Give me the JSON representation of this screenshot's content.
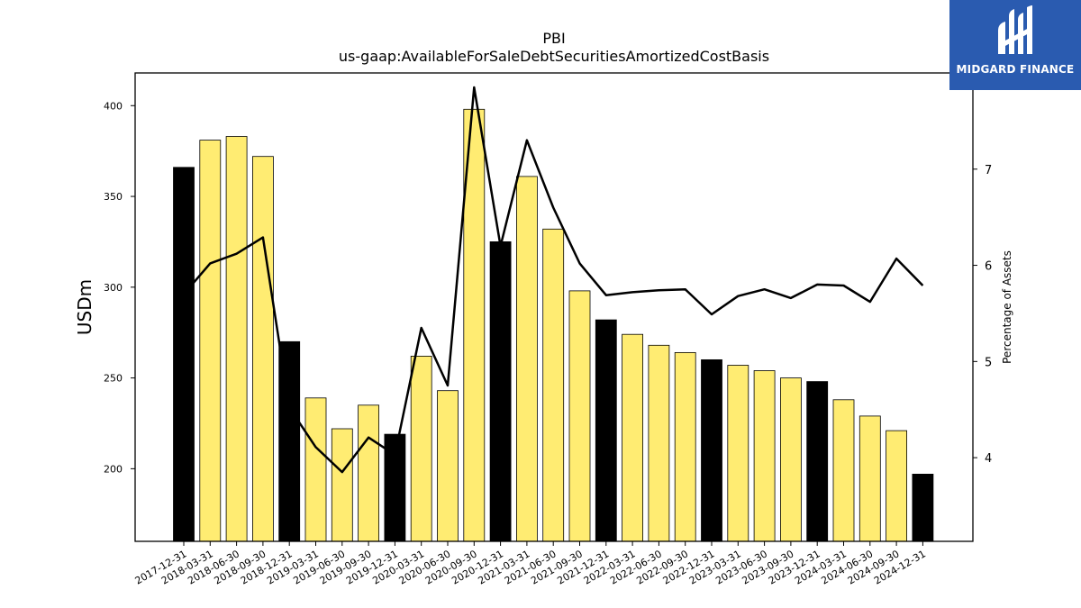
{
  "chart_data": {
    "type": "bar",
    "title": "PBI",
    "subtitle": "us-gaap:AvailableForSaleDebtSecuritiesAmortizedCostBasis",
    "ylabel": "USDm",
    "y2label": "Percentage of Assets",
    "categories": [
      "2017-12-31",
      "2018-03-31",
      "2018-06-30",
      "2018-09-30",
      "2018-12-31",
      "2019-03-31",
      "2019-06-30",
      "2019-09-30",
      "2019-12-31",
      "2020-03-31",
      "2020-06-30",
      "2020-09-30",
      "2020-12-31",
      "2021-03-31",
      "2021-06-30",
      "2021-09-30",
      "2021-12-31",
      "2022-03-31",
      "2022-06-30",
      "2022-09-30",
      "2022-12-31",
      "2023-03-31",
      "2023-06-30",
      "2023-09-30",
      "2023-12-31",
      "2024-03-31",
      "2024-06-30",
      "2024-09-30",
      "2024-12-31"
    ],
    "values": [
      366,
      381,
      383,
      372,
      270,
      239,
      222,
      235,
      219,
      262,
      243,
      398,
      325,
      361,
      332,
      298,
      282,
      274,
      268,
      264,
      260,
      257,
      254,
      250,
      248,
      238,
      229,
      221,
      197
    ],
    "fiscal_year_end": [
      true,
      false,
      false,
      false,
      true,
      false,
      false,
      false,
      true,
      false,
      false,
      false,
      true,
      false,
      false,
      false,
      true,
      false,
      false,
      false,
      true,
      false,
      false,
      false,
      true,
      false,
      false,
      false,
      true
    ],
    "pct_assets": [
      5.7,
      6.02,
      6.12,
      6.29,
      4.52,
      4.11,
      3.85,
      4.21,
      4.03,
      5.35,
      4.75,
      7.85,
      6.2,
      7.3,
      6.6,
      6.02,
      5.69,
      5.72,
      5.74,
      5.75,
      5.49,
      5.68,
      5.75,
      5.66,
      5.8,
      5.79,
      5.62,
      6.07,
      5.79
    ],
    "ylim": [
      160,
      418
    ],
    "y2lim": [
      3.13,
      8.0
    ],
    "yticks": [
      200,
      250,
      300,
      350,
      400
    ],
    "y2ticks": [
      4,
      5,
      6,
      7
    ],
    "colors": {
      "bar_quarter": "#ffec72",
      "bar_year": "#000000",
      "line": "#000000",
      "edge": "#000000"
    }
  },
  "logo": {
    "text": "MIDGARD FINANCE",
    "bg": "#2a5bb0"
  }
}
